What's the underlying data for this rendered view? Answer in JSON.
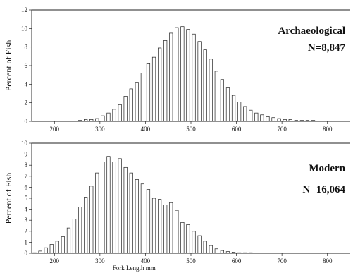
{
  "chart_data": [
    {
      "type": "bar",
      "annotation_title": "Archaeological",
      "annotation_n": "N=8,847",
      "ylabel": "Percent of Fish",
      "xlabel": "",
      "xlim": [
        150,
        850
      ],
      "ylim": [
        0,
        12
      ],
      "bin_width": 12.5,
      "x_ticks": [
        200,
        300,
        400,
        500,
        600,
        700,
        800
      ],
      "y_ticks": [
        0,
        2,
        4,
        6,
        8,
        10,
        12
      ],
      "grid": false,
      "x": [
        156.25,
        168.75,
        181.25,
        193.75,
        206.25,
        218.75,
        231.25,
        243.75,
        256.25,
        268.75,
        281.25,
        293.75,
        306.25,
        318.75,
        331.25,
        343.75,
        356.25,
        368.75,
        381.25,
        393.75,
        406.25,
        418.75,
        431.25,
        443.75,
        456.25,
        468.75,
        481.25,
        493.75,
        506.25,
        518.75,
        531.25,
        543.75,
        556.25,
        568.75,
        581.25,
        593.75,
        606.25,
        618.75,
        631.25,
        643.75,
        656.25,
        668.75,
        681.25,
        693.75,
        706.25,
        718.75,
        731.25,
        743.75,
        756.25,
        768.75,
        781.25,
        793.75,
        806.25,
        818.75,
        831.25,
        843.75
      ],
      "values": [
        0,
        0,
        0,
        0,
        0,
        0,
        0,
        0,
        0.1,
        0.2,
        0.2,
        0.3,
        0.6,
        0.9,
        1.3,
        1.8,
        2.7,
        3.5,
        4.2,
        5.2,
        6.2,
        6.9,
        7.9,
        8.7,
        9.5,
        10.1,
        10.2,
        9.9,
        9.4,
        8.6,
        7.7,
        6.7,
        5.4,
        4.5,
        3.6,
        2.8,
        2.1,
        1.6,
        1.2,
        0.9,
        0.7,
        0.5,
        0.4,
        0.3,
        0.2,
        0.2,
        0.1,
        0.1,
        0.1,
        0.1,
        0,
        0,
        0,
        0,
        0,
        0
      ]
    },
    {
      "type": "bar",
      "annotation_title": "Modern",
      "annotation_n": "N=16,064",
      "ylabel": "Percent of Fish",
      "xlabel": "Fork Length mm",
      "xlim": [
        150,
        850
      ],
      "ylim": [
        0,
        10
      ],
      "bin_width": 12.5,
      "x_ticks": [
        200,
        300,
        400,
        500,
        600,
        700,
        800
      ],
      "y_ticks": [
        0,
        1,
        2,
        3,
        4,
        5,
        6,
        7,
        8,
        9,
        10
      ],
      "grid": false,
      "x": [
        156.25,
        168.75,
        181.25,
        193.75,
        206.25,
        218.75,
        231.25,
        243.75,
        256.25,
        268.75,
        281.25,
        293.75,
        306.25,
        318.75,
        331.25,
        343.75,
        356.25,
        368.75,
        381.25,
        393.75,
        406.25,
        418.75,
        431.25,
        443.75,
        456.25,
        468.75,
        481.25,
        493.75,
        506.25,
        518.75,
        531.25,
        543.75,
        556.25,
        568.75,
        581.25,
        593.75,
        606.25,
        618.75,
        631.25,
        643.75,
        656.25,
        668.75,
        681.25,
        693.75,
        706.25,
        718.75,
        731.25,
        743.75,
        756.25,
        768.75,
        781.25,
        793.75,
        806.25,
        818.75,
        831.25,
        843.75
      ],
      "values": [
        0.05,
        0.2,
        0.5,
        0.8,
        1.1,
        1.5,
        2.3,
        3.1,
        4.2,
        5.1,
        6.1,
        7.3,
        8.3,
        8.8,
        8.3,
        8.6,
        7.8,
        7.3,
        6.7,
        6.3,
        5.8,
        5.0,
        4.9,
        4.4,
        4.6,
        3.9,
        2.8,
        2.6,
        2.0,
        1.6,
        1.1,
        0.7,
        0.4,
        0.25,
        0.15,
        0.1,
        0.05,
        0.05,
        0.05,
        0,
        0,
        0,
        0,
        0,
        0,
        0,
        0,
        0,
        0,
        0,
        0,
        0,
        0,
        0,
        0,
        0
      ]
    }
  ]
}
